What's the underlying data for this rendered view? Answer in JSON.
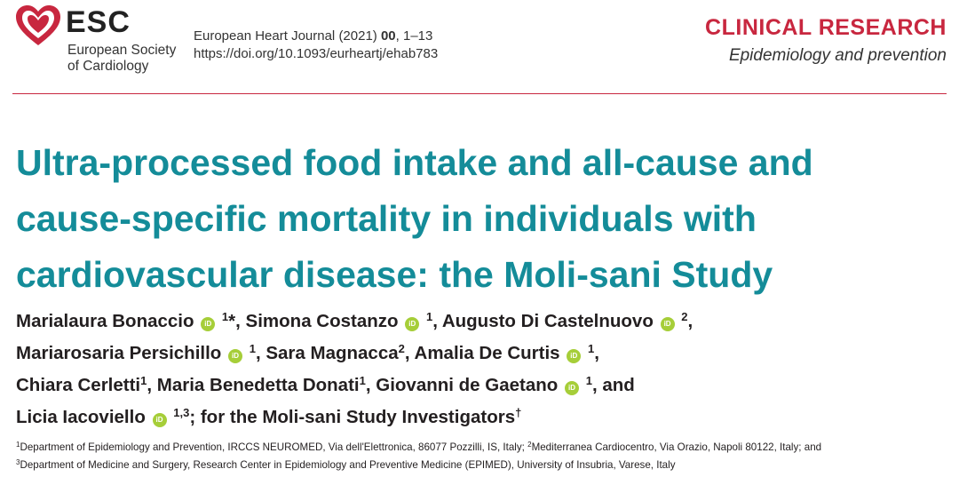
{
  "logo": {
    "name": "ESC",
    "line1": "European Society",
    "line2": "of Cardiology"
  },
  "journal": {
    "name": "European Heart Journal",
    "year": "(2021)",
    "volume": "00",
    "pages": ", 1–13",
    "doi": "https://doi.org/10.1093/eurheartj/ehab783"
  },
  "section": {
    "title": "CLINICAL RESEARCH",
    "subtitle": "Epidemiology and prevention"
  },
  "article": {
    "title_lines": [
      "Ultra-processed food intake and all-cause and",
      "cause-specific mortality in individuals with",
      "cardiovascular disease: the Moli-sani Study"
    ]
  },
  "orcid_label": "iD",
  "authors": {
    "a1": {
      "name": "Marialaura Bonaccio",
      "sup": "1",
      "mark": "*"
    },
    "a2": {
      "name": "Simona Costanzo",
      "sup": "1"
    },
    "a3": {
      "name": "Augusto Di Castelnuovo",
      "sup": "2"
    },
    "a4": {
      "name": "Mariarosaria Persichillo",
      "sup": "1"
    },
    "a5": {
      "name": "Sara Magnacca",
      "sup": "2"
    },
    "a6": {
      "name": "Amalia De Curtis",
      "sup": "1"
    },
    "a7": {
      "name": "Chiara Cerletti",
      "sup": "1"
    },
    "a8": {
      "name": "Maria Benedetta Donati",
      "sup": "1"
    },
    "a9": {
      "name": "Giovanni de Gaetano",
      "sup": "1"
    },
    "a10": {
      "name": "Licia Iacoviello",
      "sup": "1,3"
    },
    "group": "for the Moli-sani Study Investigators",
    "group_mark": "†",
    "and": "and"
  },
  "affiliations": {
    "n1": "1",
    "t1": "Department of Epidemiology and Prevention, IRCCS NEUROMED, Via dell'Elettronica, 86077 Pozzilli, IS, Italy;",
    "n2": "2",
    "t2": "Mediterranea Cardiocentro, Via Orazio, Napoli 80122, Italy; and",
    "n3": "3",
    "t3": "Department of Medicine and Surgery, Research Center in Epidemiology and Preventive Medicine (EPIMED), University of Insubria, Varese, Italy"
  },
  "colors": {
    "accent_red": "#c8273f",
    "title_teal": "#148c99",
    "orcid_green": "#a6ce39"
  },
  "icons": {
    "logo": "heart-icon",
    "orcid": "orcid-icon"
  }
}
